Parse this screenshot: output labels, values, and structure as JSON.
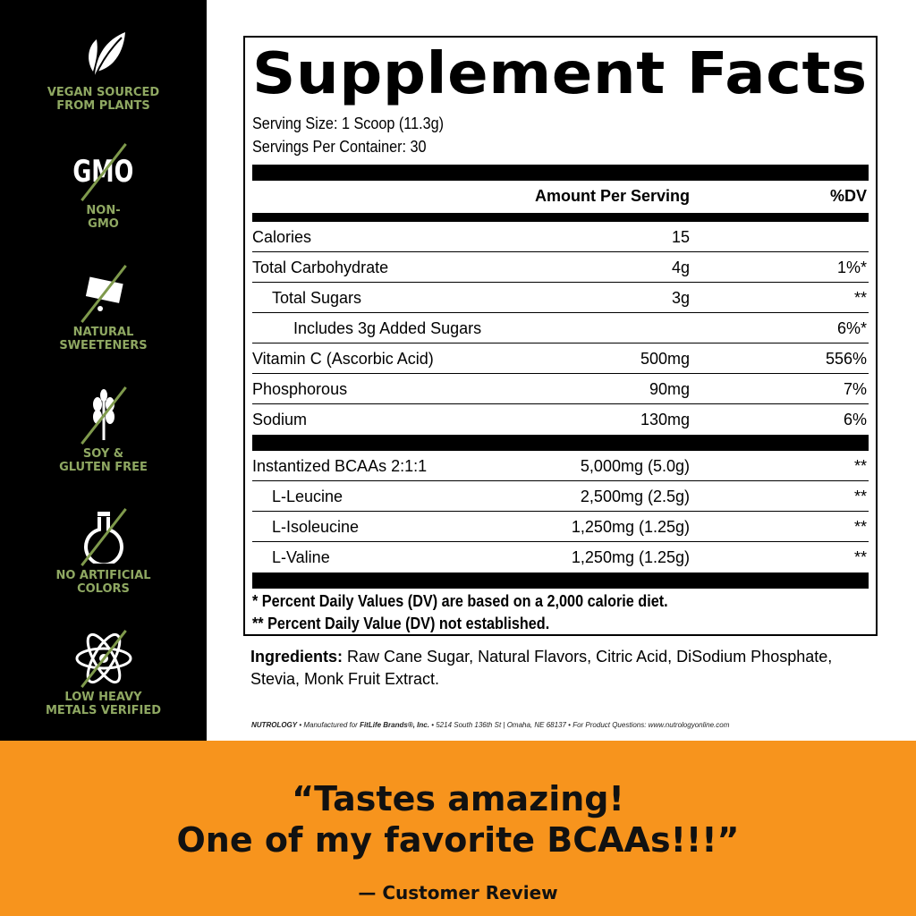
{
  "badges": [
    {
      "icon": "leaf-icon",
      "label_lines": [
        "VEGAN SOURCED",
        "FROM PLANTS"
      ]
    },
    {
      "icon": "gmo-crossed-icon",
      "icon_text": "GMO",
      "label_lines": [
        "NON-",
        "GMO"
      ]
    },
    {
      "icon": "sweetener-packet-crossed-icon",
      "label_lines": [
        "NATURAL",
        "SWEETENERS"
      ]
    },
    {
      "icon": "wheat-crossed-icon",
      "label_lines": [
        "SOY &",
        "GLUTEN FREE"
      ]
    },
    {
      "icon": "flask-crossed-icon",
      "label_lines": [
        "NO ARTIFICIAL",
        "COLORS"
      ]
    },
    {
      "icon": "atom-crossed-icon",
      "label_lines": [
        "LOW HEAVY",
        "METALS VERIFIED"
      ]
    }
  ],
  "facts": {
    "title": "Supplement Facts",
    "serving_size": "Serving Size: 1 Scoop (11.3g)",
    "servings_per_container": "Servings Per Container: 30",
    "col_amount": "Amount Per Serving",
    "col_dv": "%DV",
    "nutrients": [
      {
        "name": "Calories",
        "amount": "15",
        "dv": ""
      },
      {
        "name": "Total Carbohydrate",
        "amount": "4g",
        "dv": "1%*"
      },
      {
        "name": "Total Sugars",
        "amount": "3g",
        "dv": "**"
      },
      {
        "name": "Includes 3g Added Sugars",
        "amount": "",
        "dv": "6%*"
      },
      {
        "name": "Vitamin C (Ascorbic Acid)",
        "amount": "500mg",
        "dv": "556%"
      },
      {
        "name": "Phosphorous",
        "amount": "90mg",
        "dv": "7%"
      },
      {
        "name": "Sodium",
        "amount": "130mg",
        "dv": "6%"
      }
    ],
    "blend": [
      {
        "name": "Instantized BCAAs 2:1:1",
        "amount": "5,000mg (5.0g)",
        "dv": "**"
      },
      {
        "name": "L-Leucine",
        "amount": "2,500mg (2.5g)",
        "dv": "**"
      },
      {
        "name": "L-Isoleucine",
        "amount": "1,250mg (1.25g)",
        "dv": "**"
      },
      {
        "name": "L-Valine",
        "amount": "1,250mg (1.25g)",
        "dv": "**"
      }
    ],
    "footnote1": "* Percent Daily Values (DV) are based on a 2,000 calorie diet.",
    "footnote2": "** Percent Daily Value (DV) not established."
  },
  "ingredients": {
    "label": "Ingredients:",
    "text": " Raw Cane Sugar, Natural Flavors, Citric Acid, DiSodium Phosphate, Stevia, Monk Fruit Extract."
  },
  "manufacturer": {
    "brand": "NUTROLOGY",
    "sep": " • ",
    "made_for": "Manufactured for ",
    "company": "FitLife Brands®, Inc.",
    "address": " • 5214 South 136th St | Omaha, NE 68137 • For Product Questions: www.nutrologyonline.com"
  },
  "review": {
    "line1": "“Tastes amazing!",
    "line2": "One of my favorite BCAAs!!!”",
    "attribution": "— Customer Review"
  },
  "colors": {
    "sidebar": "#000000",
    "badge_text": "#8fa862",
    "band": "#f7941d"
  }
}
